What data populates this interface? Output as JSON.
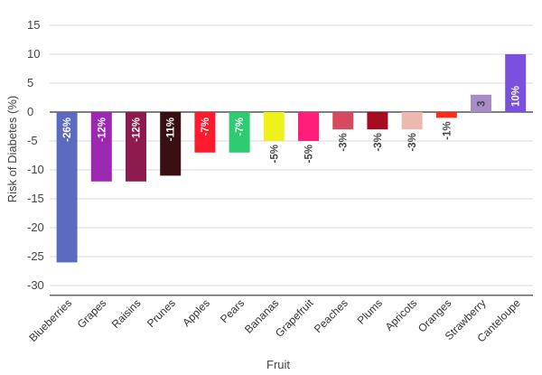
{
  "chart_data": {
    "type": "bar",
    "title": "",
    "xlabel": "Fruit",
    "ylabel": "Risk of Diabetes (%)",
    "ylim": [
      -32,
      16
    ],
    "yticks": [
      15,
      10,
      5,
      0,
      -5,
      -10,
      -15,
      -20,
      -25,
      -30
    ],
    "grid": true,
    "categories": [
      "Blueberries",
      "Grapes",
      "Raisins",
      "Prunes",
      "Apples",
      "Pears",
      "Bananas",
      "Grapefruit",
      "Peaches",
      "Plums",
      "Apricots",
      "Oranges",
      "Strawberry",
      "Canteloupe"
    ],
    "values": [
      -26,
      -12,
      -12,
      -11,
      -7,
      -7,
      -5,
      -5,
      -3,
      -3,
      -3,
      -1,
      3,
      10
    ],
    "data_labels": [
      "-26%",
      "-12%",
      "-12%",
      "-11%",
      "-7%",
      "-7%",
      "-5%",
      "-5%",
      "-3%",
      "-3%",
      "-3%",
      "-1%",
      "3",
      "10%"
    ],
    "colors": [
      "#5c6bc0",
      "#9c27b0",
      "#8e1b4e",
      "#3a0f14",
      "#ff1a2e",
      "#2ecc71",
      "#eef21a",
      "#ff1f7a",
      "#d64a60",
      "#a60b22",
      "#edb8b0",
      "#ff2a1a",
      "#a98bc7",
      "#7b4fe0"
    ]
  }
}
